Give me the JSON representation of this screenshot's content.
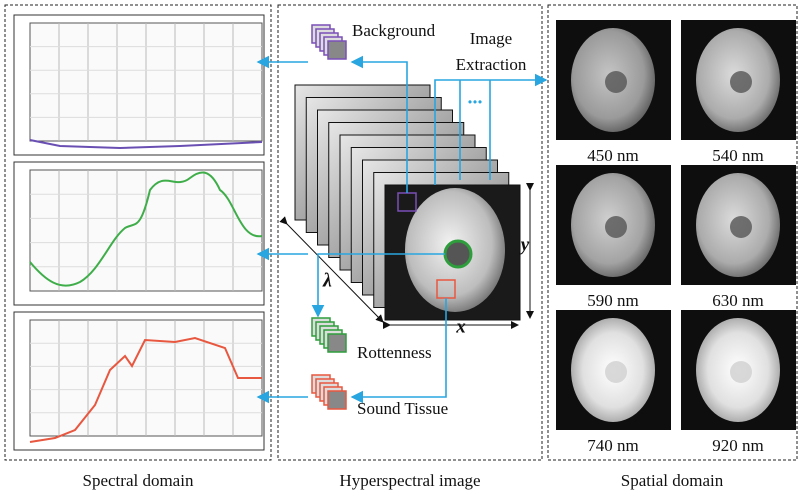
{
  "spectral": {
    "title": "Spectral domain"
  },
  "hyperspectral": {
    "title": "Hyperspectral image",
    "background": "Background",
    "extraction": "Image Extraction",
    "more": "...",
    "rottenness": "Rottenness",
    "sound": "Sound Tissue",
    "lambda": "λ",
    "x": "x",
    "y": "y"
  },
  "spatial": {
    "title": "Spatial domain",
    "images": [
      "450 nm",
      "540 nm",
      "590 nm",
      "630 nm",
      "740 nm",
      "920 nm"
    ]
  }
}
